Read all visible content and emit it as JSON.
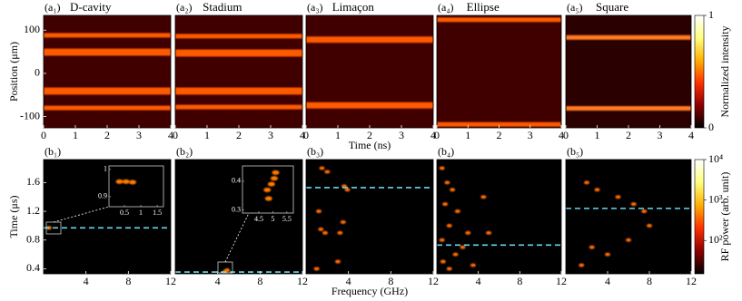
{
  "chart_data": [
    {
      "type": "stripes",
      "panel_label": "(a₁)",
      "title": "D-cavity",
      "ylabel": "Position (μm)",
      "xlim": [
        0,
        4
      ],
      "xticks": [
        0,
        1,
        2,
        3,
        4
      ],
      "ylim": [
        -126,
        134
      ],
      "yticks": [
        -100,
        0,
        100
      ],
      "background": "#400000",
      "band_color": "#ff5a00",
      "bands": [
        88,
        52,
        46,
        -38,
        -44,
        -80
      ]
    },
    {
      "type": "stripes",
      "panel_label": "(a₂)",
      "title": "Stadium",
      "xlim": [
        0,
        4
      ],
      "xticks": [
        0,
        1,
        2,
        3,
        4
      ],
      "ylim": [
        -126,
        134
      ],
      "background": "#400000",
      "band_color": "#ff5a00",
      "bands": [
        86,
        50,
        44,
        -38,
        -44,
        -78
      ]
    },
    {
      "type": "stripes",
      "panel_label": "(a₃)",
      "title": "Limaçon",
      "xlabel": "Time (ns)",
      "xlim": [
        0,
        4
      ],
      "xticks": [
        0,
        1,
        2,
        3,
        4
      ],
      "ylim": [
        -126,
        134
      ],
      "background": "#400000",
      "band_color": "#ff5a00",
      "bands": [
        80,
        76,
        -72,
        -76
      ]
    },
    {
      "type": "stripes",
      "panel_label": "(a₄)",
      "title": "Ellipse",
      "xlim": [
        0,
        4
      ],
      "xticks": [
        0,
        1,
        2,
        3,
        4
      ],
      "ylim": [
        -126,
        134
      ],
      "background": "#400000",
      "band_color": "#ff5a00",
      "bands": [
        124,
        -118
      ]
    },
    {
      "type": "stripes",
      "panel_label": "(a₅)",
      "title": "Square",
      "xlim": [
        0,
        4
      ],
      "xticks": [
        0,
        1,
        2,
        3,
        4
      ],
      "ylim": [
        -126,
        134
      ],
      "background": "#2a0000",
      "band_color": "#ff7a20",
      "bands": [
        83,
        -81
      ]
    },
    {
      "type": "spectrogram",
      "panel_label": "(b₁)",
      "ylabel": "Time (μs)",
      "xlim": [
        0,
        12
      ],
      "xticks": [
        4,
        8,
        12
      ],
      "ylim": [
        0.33,
        1.92
      ],
      "yticks": [
        0.4,
        0.8,
        1.2,
        1.6
      ],
      "background": "#000000",
      "feature_color": "#ff7a00",
      "marker": 0.97,
      "marker_color": "#66d9ef",
      "features": [
        [
          0.5,
          0.97
        ]
      ],
      "inset": {
        "xlim": [
          0.03,
          1.69
        ],
        "ylim": [
          0.863,
          1.013
        ],
        "xticks": [
          0.5,
          1,
          1.5
        ],
        "yticks": [
          0.9,
          1
        ],
        "features": [
          [
            0.35,
            0.955
          ],
          [
            0.55,
            0.955
          ],
          [
            0.75,
            0.953
          ]
        ]
      }
    },
    {
      "type": "spectrogram",
      "panel_label": "(b₂)",
      "xlim": [
        0,
        12
      ],
      "xticks": [
        4,
        8,
        12
      ],
      "ylim": [
        0.33,
        1.92
      ],
      "background": "#000000",
      "feature_color": "#ff7a00",
      "marker": 0.355,
      "marker_color": "#66d9ef",
      "features": [
        [
          4.9,
          0.38
        ],
        [
          4.7,
          0.36
        ]
      ],
      "inset": {
        "xlim": [
          3.92,
          5.73
        ],
        "ylim": [
          0.29,
          0.453
        ],
        "xticks": [
          4.5,
          5,
          5.5
        ],
        "yticks": [
          0.3,
          0.4
        ],
        "features": [
          [
            4.8,
            0.37
          ],
          [
            4.95,
            0.39
          ],
          [
            5.05,
            0.41
          ],
          [
            4.85,
            0.34
          ],
          [
            5.1,
            0.43
          ]
        ]
      }
    },
    {
      "type": "spectrogram",
      "panel_label": "(b₃)",
      "xlabel": "Frequency (GHz)",
      "xlim": [
        0,
        12
      ],
      "xticks": [
        4,
        8,
        12
      ],
      "ylim": [
        0.33,
        1.92
      ],
      "background": "#000000",
      "feature_color": "#ff6a00",
      "marker": 1.53,
      "marker_color": "#66d9ef",
      "features": [
        [
          1.5,
          1.8
        ],
        [
          2,
          1.75
        ],
        [
          3.6,
          1.55
        ],
        [
          3.9,
          1.5
        ],
        [
          1.2,
          1.2
        ],
        [
          3.5,
          1.05
        ],
        [
          1.4,
          0.95
        ],
        [
          1.8,
          0.9
        ],
        [
          3.2,
          0.9
        ],
        [
          3,
          0.5
        ],
        [
          1,
          0.4
        ]
      ]
    },
    {
      "type": "spectrogram",
      "panel_label": "(b₄)",
      "xlim": [
        0,
        12
      ],
      "xticks": [
        4,
        8,
        12
      ],
      "ylim": [
        0.33,
        1.92
      ],
      "background": "#000000",
      "feature_color": "#ff6a00",
      "marker": 0.73,
      "marker_color": "#66d9ef",
      "features": [
        [
          0.5,
          1.8
        ],
        [
          1,
          1.6
        ],
        [
          1.5,
          1.5
        ],
        [
          0.8,
          1.3
        ],
        [
          2,
          1.2
        ],
        [
          1.2,
          1.0
        ],
        [
          3,
          0.9
        ],
        [
          0.5,
          0.8
        ],
        [
          2.5,
          0.7
        ],
        [
          1.8,
          0.6
        ],
        [
          0.6,
          0.5
        ],
        [
          3.5,
          0.45
        ],
        [
          1.2,
          0.4
        ],
        [
          5,
          0.9
        ],
        [
          4.5,
          1.4
        ]
      ]
    },
    {
      "type": "spectrogram",
      "panel_label": "(b₅)",
      "xlim": [
        0,
        12
      ],
      "xticks": [
        4,
        8,
        12
      ],
      "ylim": [
        0.33,
        1.92
      ],
      "background": "#000000",
      "feature_color": "#ff6a00",
      "marker": 1.24,
      "marker_color": "#66d9ef",
      "features": [
        [
          2,
          1.6
        ],
        [
          3,
          1.5
        ],
        [
          5,
          1.4
        ],
        [
          6.5,
          1.3
        ],
        [
          7.5,
          1.2
        ],
        [
          8,
          1.0
        ],
        [
          6,
          0.8
        ],
        [
          2.5,
          0.7
        ],
        [
          4,
          0.6
        ],
        [
          1.5,
          0.45
        ]
      ]
    },
    {
      "type": "colorbar",
      "label": "Normalized intensity",
      "ylim": [
        0,
        1
      ],
      "yticks": [
        0,
        1
      ],
      "colormap": [
        "#000000",
        "#8b0000",
        "#ff3000",
        "#ffb000",
        "#ffff80",
        "#ffffff"
      ]
    },
    {
      "type": "colorbar",
      "label": "RF power (arb. unit)",
      "log": true,
      "ylim": [
        15,
        10000
      ],
      "yticks": [
        {
          "value": 100,
          "label": "10²"
        },
        {
          "value": 1000,
          "label": "10³"
        },
        {
          "value": 10000,
          "label": "10⁴"
        }
      ],
      "colormap": [
        "#000000",
        "#8b0000",
        "#ff3000",
        "#ffb000",
        "#ffff80",
        "#ffffff"
      ]
    }
  ]
}
